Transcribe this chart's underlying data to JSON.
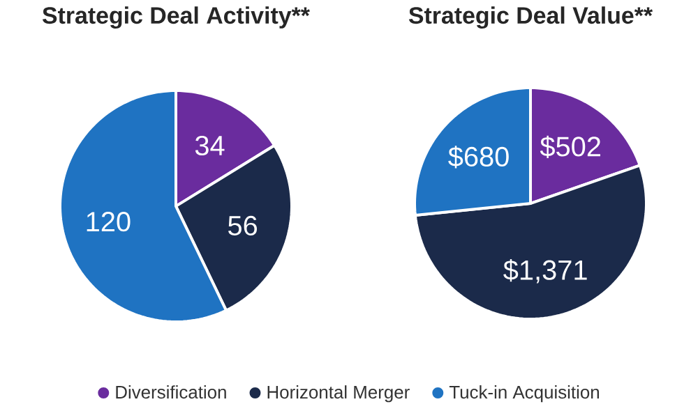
{
  "chart_data": [
    {
      "type": "pie",
      "title": "Strategic Deal Activity**",
      "categories": [
        "Diversification",
        "Horizontal Merger",
        "Tuck-in Acquisition"
      ],
      "values": [
        34,
        56,
        120
      ],
      "colors": [
        "#6a2c9e",
        "#1b2a4a",
        "#1f73c2"
      ],
      "data_labels": true,
      "legend": "bottom"
    },
    {
      "type": "pie",
      "title": "Strategic Deal Value**",
      "categories": [
        null,
        null,
        null
      ],
      "values": [
        502,
        1371,
        680
      ],
      "colors": [
        "#6a2c9e",
        "#1b2a4a",
        "#1f73c2"
      ],
      "value_labels": [
        "$502",
        "$1,371",
        "$680"
      ]
    }
  ]
}
